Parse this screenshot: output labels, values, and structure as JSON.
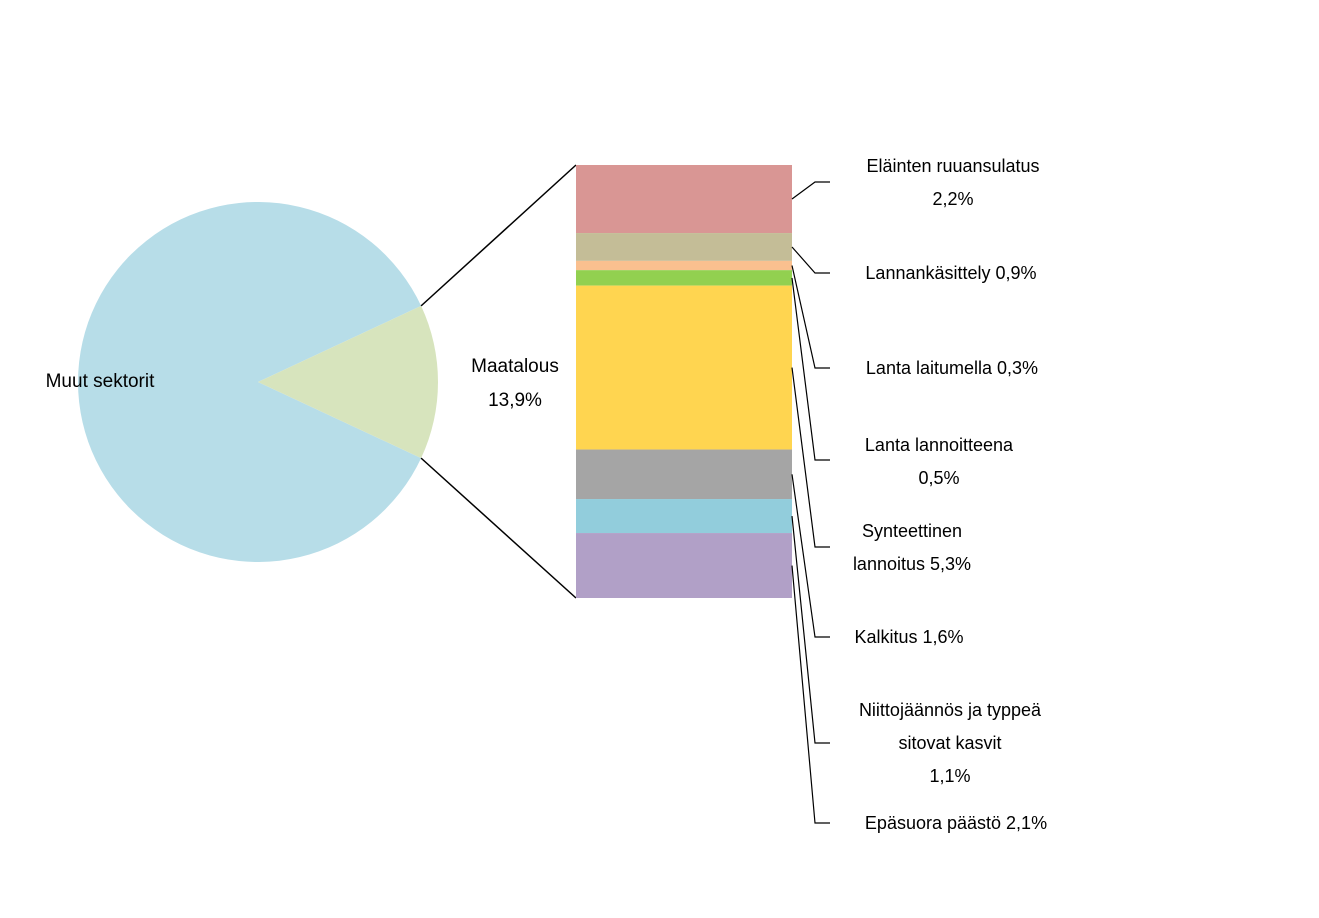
{
  "chart_data": {
    "type": "bar-of-pie",
    "pie": {
      "categories": [
        "Muut sektorit",
        "Maatalous"
      ],
      "values": [
        86.1,
        13.9
      ],
      "value_labels": [
        null,
        "13,9%"
      ],
      "colors": [
        "#b7dde8",
        "#d7e4bd"
      ]
    },
    "bar": {
      "categories": [
        "Eläinten ruuansulatus",
        "Lannankäsittely",
        "Lanta laitumella",
        "Lanta lannoitteena",
        "Synteettinen lannoitus",
        "Kalkitus",
        "Niittojäännös ja typpeä sitovat kasvit",
        "Epäsuora päästö"
      ],
      "values": [
        2.2,
        0.9,
        0.3,
        0.5,
        5.3,
        1.6,
        1.1,
        2.1
      ],
      "value_labels": [
        "2,2%",
        "0,9%",
        "0,3%",
        "0,5%",
        "5,3%",
        "1,6%",
        "1,1%",
        "2,1%"
      ],
      "colors": [
        "#d99694",
        "#c4bd97",
        "#fac08f",
        "#92d050",
        "#ffd550",
        "#a5a5a5",
        "#92cddc",
        "#b1a0c7"
      ]
    }
  }
}
